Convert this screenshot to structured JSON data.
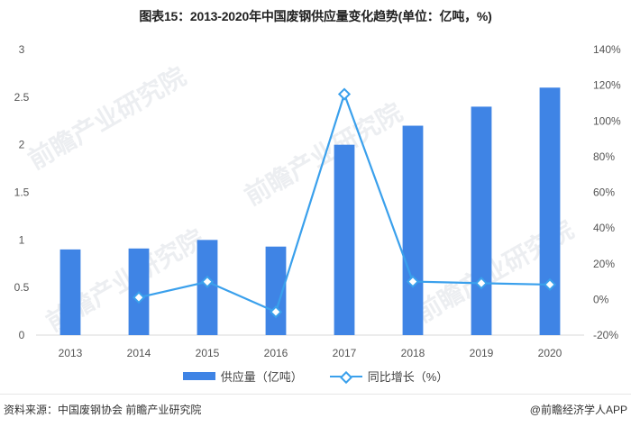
{
  "title": "图表15：2013-2020年中国废钢供应量变化趋势(单位：亿吨，%)",
  "legend": {
    "bar_label": "供应量（亿吨）",
    "line_label": "同比增长（%）"
  },
  "footer": {
    "source": "资料来源：中国废钢协会 前瞻产业研究院",
    "credit": "@前瞻经济学人APP"
  },
  "watermark": "前瞻产业研究院",
  "colors": {
    "bar": "#3f84e5",
    "line": "#3aa0ec",
    "axis": "#d9d9d9",
    "tick_text": "#555555"
  },
  "chart_data": {
    "type": "bar",
    "title": "图表15：2013-2020年中国废钢供应量变化趋势(单位：亿吨，%)",
    "categories": [
      "2013",
      "2014",
      "2015",
      "2016",
      "2017",
      "2018",
      "2019",
      "2020"
    ],
    "series": [
      {
        "name": "供应量（亿吨）",
        "type": "bar",
        "axis": "left",
        "values": [
          0.9,
          0.91,
          1.0,
          0.93,
          2.0,
          2.2,
          2.4,
          2.6
        ]
      },
      {
        "name": "同比增长（%）",
        "type": "line",
        "axis": "right",
        "values": [
          null,
          1.1,
          9.9,
          -7.0,
          115.0,
          10.0,
          9.1,
          8.3
        ]
      }
    ],
    "left_axis": {
      "ylim": [
        0,
        3
      ],
      "ticks": [
        "0",
        "0.5",
        "1",
        "1.5",
        "2",
        "2.5",
        "3"
      ]
    },
    "right_axis": {
      "ylim": [
        -20,
        140
      ],
      "ticks": [
        "-20%",
        "0%",
        "20%",
        "40%",
        "60%",
        "80%",
        "100%",
        "120%",
        "140%"
      ]
    },
    "xlabel": "",
    "ylabel": "",
    "grid": false,
    "legend_position": "bottom"
  }
}
